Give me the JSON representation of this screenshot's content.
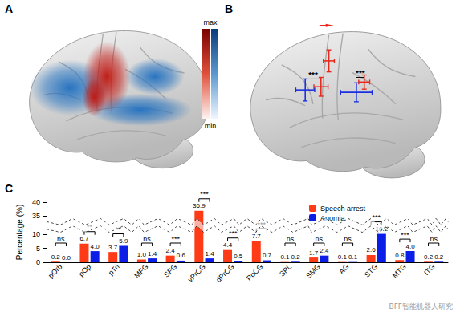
{
  "panel_labels": [
    "A",
    "B",
    "C"
  ],
  "colorbar_labels": {
    "max": "max",
    "min": "min"
  },
  "panel_b_annotations": [
    "***",
    "***"
  ],
  "watermark": "BFF智能机器人研究",
  "chart_data": {
    "type": "bar",
    "y_label": "Percentage (%)",
    "categories": [
      "pOrb",
      "pOp",
      "pTri",
      "MFG",
      "SFG",
      "vPrCG",
      "dPrCG",
      "PoCG",
      "SPL",
      "SMG",
      "AG",
      "STG",
      "MTG",
      "ITG"
    ],
    "series": [
      {
        "name": "Speech arrest",
        "color": "#ff3a17",
        "values": [
          0.2,
          6.7,
          3.7,
          1.0,
          2.4,
          36.9,
          4.4,
          7.7,
          0.1,
          1.7,
          0.1,
          2.6,
          0.8,
          0.2
        ],
        "value_labels": [
          "0.2",
          "6.7",
          "3.7",
          "1.0",
          "2.4",
          "36.9",
          "4.4",
          "7.7",
          "0.1",
          "1.7",
          "0.1",
          "2.6",
          "0.8",
          "0.2"
        ]
      },
      {
        "name": "Anomia",
        "color": "#0a1ee8",
        "values": [
          0.0,
          4.0,
          5.9,
          1.4,
          0.6,
          1.4,
          0.5,
          0.7,
          0.2,
          2.4,
          0.1,
          10.2,
          4.0,
          0.2
        ],
        "value_labels": [
          "0.0",
          "4.0",
          "5.9",
          "1.4",
          "0.6",
          "1.4",
          "0.5",
          "0.7",
          "0.2",
          "2.4",
          "0.1",
          "10.2",
          "4.0",
          "0.2"
        ]
      }
    ],
    "significance": [
      "ns",
      "**",
      "**",
      "ns",
      "***",
      "***",
      "***",
      "***",
      "ns",
      "ns",
      "ns",
      "***",
      "***",
      "ns"
    ],
    "ylim": [
      0,
      40
    ],
    "yticks": [
      0,
      5,
      10,
      35,
      40
    ],
    "y_break": [
      12,
      33
    ],
    "legend": "top-right",
    "data_labels": true,
    "grid": false
  }
}
